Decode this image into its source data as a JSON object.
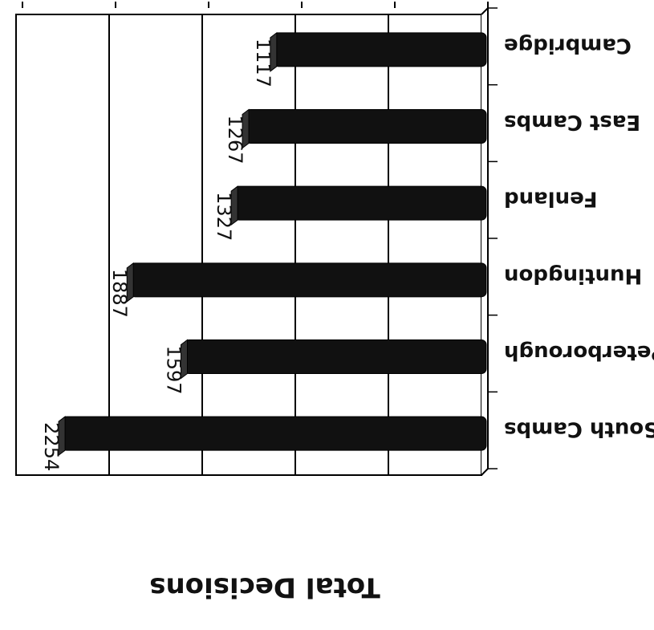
{
  "chart_data": {
    "type": "bar",
    "orientation": "horizontal",
    "rotation": "180deg",
    "categories": [
      "Cambridge",
      "East Cambs",
      "Fenland",
      "Huntingdon",
      "Peterborough",
      "South Cambs"
    ],
    "values": [
      1117,
      1267,
      1327,
      1887,
      1597,
      2254
    ],
    "title": "",
    "xlabel": "Total Decisions",
    "ylabel": "",
    "xlim": [
      0,
      2500
    ],
    "ticks": [
      "0",
      "500",
      "1000",
      "1500",
      "2000",
      "2500"
    ],
    "grid": true,
    "legend": "none",
    "colors": {
      "bar": "#111111",
      "grid": "#000000",
      "background": "#ffffff"
    }
  }
}
